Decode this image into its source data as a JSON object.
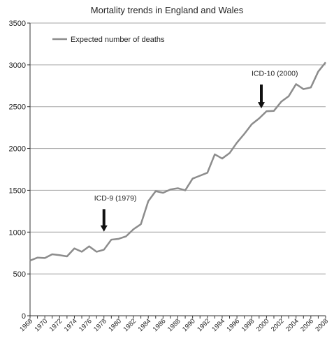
{
  "chart_data": {
    "type": "line",
    "title": "Mortality trends in England and Wales",
    "xlabel": "",
    "ylabel": "",
    "xlim": [
      1968,
      2008
    ],
    "ylim": [
      0,
      3500
    ],
    "yticks": [
      0,
      500,
      1000,
      1500,
      2000,
      2500,
      3000,
      3500
    ],
    "xticks": [
      1968,
      1970,
      1972,
      1974,
      1976,
      1978,
      1980,
      1982,
      1984,
      1986,
      1988,
      1990,
      1992,
      1994,
      1996,
      1998,
      2000,
      2002,
      2004,
      2006,
      2008
    ],
    "grid": "horizontal",
    "legend_position": "top-left",
    "series": [
      {
        "name": "Expected number of deaths",
        "color": "#8c8c8c",
        "x": [
          1968,
          1969,
          1970,
          1971,
          1972,
          1973,
          1974,
          1975,
          1976,
          1977,
          1978,
          1979,
          1980,
          1981,
          1982,
          1983,
          1984,
          1985,
          1986,
          1987,
          1988,
          1989,
          1990,
          1991,
          1992,
          1993,
          1994,
          1995,
          1996,
          1997,
          1998,
          1999,
          2000,
          2001,
          2002,
          2003,
          2004,
          2005,
          2006,
          2007,
          2008
        ],
        "y": [
          660,
          695,
          690,
          735,
          725,
          710,
          805,
          765,
          830,
          765,
          790,
          910,
          920,
          950,
          1035,
          1095,
          1370,
          1490,
          1470,
          1510,
          1525,
          1500,
          1640,
          1675,
          1710,
          1930,
          1880,
          1945,
          2070,
          2175,
          2290,
          2360,
          2445,
          2450,
          2560,
          2625,
          2770,
          2710,
          2730,
          2920,
          3030
        ]
      }
    ],
    "annotations": [
      {
        "label": "ICD-9 (1979)",
        "x": 1978,
        "y_text": 1380,
        "arrow_top": 1275,
        "arrow_bottom": 1005
      },
      {
        "label": "ICD-10 (2000)",
        "x": 1999.3,
        "y_text": 2870,
        "arrow_top": 2765,
        "arrow_bottom": 2480
      }
    ]
  }
}
